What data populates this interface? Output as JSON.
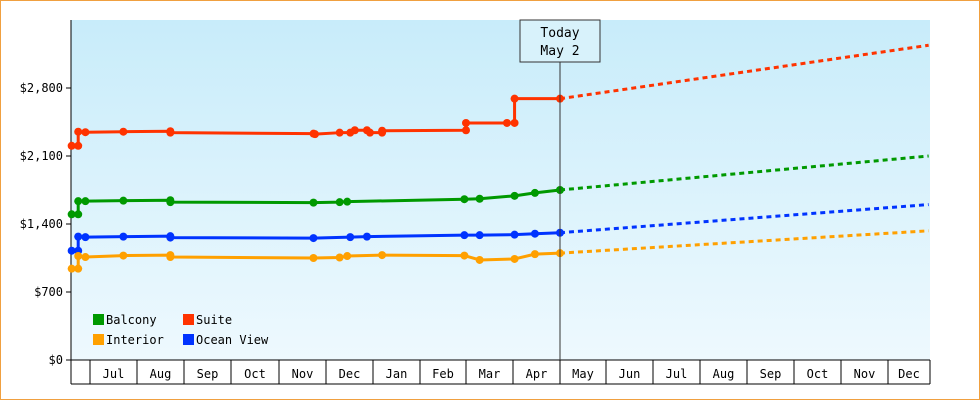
{
  "chart_data": {
    "type": "line",
    "title": "",
    "xlabel": "",
    "ylabel": "",
    "ylim": [
      0,
      3500
    ],
    "yticks": [
      0,
      700,
      1400,
      2100,
      2800
    ],
    "ytick_labels": [
      "$0",
      "$700",
      "$1,400",
      "$2,100",
      "$2,800"
    ],
    "x_months": [
      "Jul",
      "Aug",
      "Sep",
      "Oct",
      "Nov",
      "Dec",
      "Jan",
      "Feb",
      "Mar",
      "Apr",
      "May",
      "Jun",
      "Jul",
      "Aug",
      "Sep",
      "Oct",
      "Nov",
      "Dec"
    ],
    "grid": false,
    "legend": "bottom-left",
    "today_marker": {
      "line1": "Today",
      "line2": "May 2"
    },
    "series": [
      {
        "name": "Suite",
        "color": "#ff3300",
        "history": [
          {
            "x": "Jun 2",
            "y": 2205
          },
          {
            "x": "Jun 12",
            "y": 2205
          },
          {
            "x": "Jun 12",
            "y": 2350
          },
          {
            "x": "Jun 23",
            "y": 2345
          },
          {
            "x": "Jul 23",
            "y": 2350
          },
          {
            "x": "Aug 23",
            "y": 2355
          },
          {
            "x": "Aug 23",
            "y": 2340
          },
          {
            "x": "Nov 23",
            "y": 2330
          },
          {
            "x": "Nov 24",
            "y": 2325
          },
          {
            "x": "Dec 10",
            "y": 2340
          },
          {
            "x": "Dec 17",
            "y": 2340
          },
          {
            "x": "Dec 20",
            "y": 2365
          },
          {
            "x": "Dec 28",
            "y": 2365
          },
          {
            "x": "Dec 30",
            "y": 2340
          },
          {
            "x": "Jan 7",
            "y": 2340
          },
          {
            "x": "Jan 7",
            "y": 2360
          },
          {
            "x": "Mar 1",
            "y": 2365
          },
          {
            "x": "Mar 1",
            "y": 2440
          },
          {
            "x": "Mar 28",
            "y": 2440
          },
          {
            "x": "Apr 2",
            "y": 2440
          },
          {
            "x": "Apr 2",
            "y": 2690
          },
          {
            "x": "May 2",
            "y": 2690
          }
        ],
        "forecast": [
          {
            "x": "May 2",
            "y": 2690
          },
          {
            "x": "Dec 31",
            "y": 3240
          }
        ]
      },
      {
        "name": "Balcony",
        "color": "#009900",
        "history": [
          {
            "x": "Jun 2",
            "y": 1500
          },
          {
            "x": "Jun 12",
            "y": 1500
          },
          {
            "x": "Jun 12",
            "y": 1635
          },
          {
            "x": "Jun 23",
            "y": 1635
          },
          {
            "x": "Jul 23",
            "y": 1640
          },
          {
            "x": "Aug 23",
            "y": 1645
          },
          {
            "x": "Aug 23",
            "y": 1625
          },
          {
            "x": "Nov 23",
            "y": 1620
          },
          {
            "x": "Dec 10",
            "y": 1625
          },
          {
            "x": "Dec 15",
            "y": 1630
          },
          {
            "x": "Feb 28",
            "y": 1655
          },
          {
            "x": "Mar 10",
            "y": 1660
          },
          {
            "x": "Apr 2",
            "y": 1690
          },
          {
            "x": "Apr 15",
            "y": 1720
          },
          {
            "x": "May 2",
            "y": 1750
          }
        ],
        "forecast": [
          {
            "x": "May 2",
            "y": 1750
          },
          {
            "x": "Dec 31",
            "y": 2100
          }
        ]
      },
      {
        "name": "Ocean View",
        "color": "#0033ff",
        "history": [
          {
            "x": "Jun 2",
            "y": 1125
          },
          {
            "x": "Jun 12",
            "y": 1125
          },
          {
            "x": "Jun 12",
            "y": 1270
          },
          {
            "x": "Jun 23",
            "y": 1265
          },
          {
            "x": "Jul 23",
            "y": 1270
          },
          {
            "x": "Aug 23",
            "y": 1275
          },
          {
            "x": "Aug 23",
            "y": 1260
          },
          {
            "x": "Nov 23",
            "y": 1255
          },
          {
            "x": "Dec 17",
            "y": 1265
          },
          {
            "x": "Dec 28",
            "y": 1270
          },
          {
            "x": "Feb 28",
            "y": 1285
          },
          {
            "x": "Mar 10",
            "y": 1285
          },
          {
            "x": "Apr 2",
            "y": 1290
          },
          {
            "x": "Apr 15",
            "y": 1300
          },
          {
            "x": "May 2",
            "y": 1310
          }
        ],
        "forecast": [
          {
            "x": "May 2",
            "y": 1310
          },
          {
            "x": "Dec 31",
            "y": 1600
          }
        ]
      },
      {
        "name": "Interior",
        "color": "#ffa000",
        "history": [
          {
            "x": "Jun 2",
            "y": 940
          },
          {
            "x": "Jun 12",
            "y": 940
          },
          {
            "x": "Jun 12",
            "y": 1070
          },
          {
            "x": "Jun 23",
            "y": 1060
          },
          {
            "x": "Jul 23",
            "y": 1075
          },
          {
            "x": "Aug 23",
            "y": 1080
          },
          {
            "x": "Aug 23",
            "y": 1060
          },
          {
            "x": "Nov 23",
            "y": 1050
          },
          {
            "x": "Dec 10",
            "y": 1055
          },
          {
            "x": "Dec 15",
            "y": 1070
          },
          {
            "x": "Jan 7",
            "y": 1080
          },
          {
            "x": "Feb 28",
            "y": 1075
          },
          {
            "x": "Mar 10",
            "y": 1030
          },
          {
            "x": "Apr 2",
            "y": 1040
          },
          {
            "x": "Apr 15",
            "y": 1090
          },
          {
            "x": "May 2",
            "y": 1100
          }
        ],
        "forecast": [
          {
            "x": "May 2",
            "y": 1100
          },
          {
            "x": "Dec 31",
            "y": 1330
          }
        ]
      }
    ],
    "legend_items": [
      {
        "label": "Balcony",
        "color": "#009900"
      },
      {
        "label": "Suite",
        "color": "#ff3300"
      },
      {
        "label": "Interior",
        "color": "#ffa000"
      },
      {
        "label": "Ocean View",
        "color": "#0033ff"
      }
    ]
  }
}
